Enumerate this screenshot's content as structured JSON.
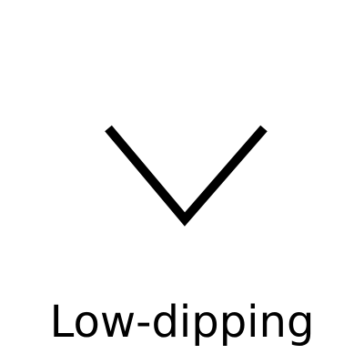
{
  "icon": {
    "name": "chevron-down-icon",
    "color": "#000000"
  },
  "caption": {
    "text": "Low-dipping",
    "color": "#000000"
  }
}
